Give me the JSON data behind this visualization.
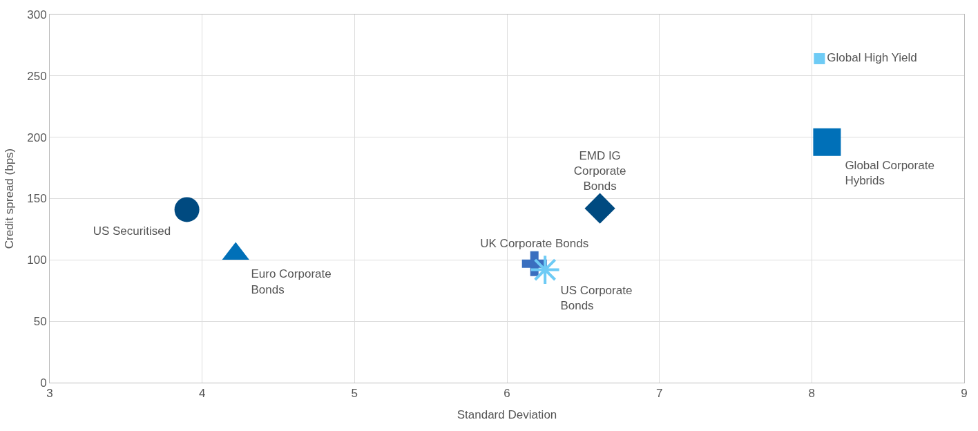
{
  "chart_data": {
    "type": "scatter",
    "xlabel": "Standard Deviation",
    "ylabel": "Credit spread (bps)",
    "xlim": [
      3,
      9
    ],
    "xticks": [
      3,
      4,
      5,
      6,
      7,
      8,
      9
    ],
    "ylim": [
      0,
      300
    ],
    "yticks": [
      0,
      50,
      100,
      150,
      200,
      250,
      300
    ],
    "grid": true,
    "legend": false,
    "series": [
      {
        "name": "US Securitised",
        "color": "#004a80",
        "marker": "circle",
        "x": [
          3.9
        ],
        "values": [
          141
        ]
      },
      {
        "name": "Euro Corporate Bonds",
        "color": "#0070b8",
        "marker": "triangle",
        "x": [
          4.22
        ],
        "values": [
          105
        ]
      },
      {
        "name": "EMD IG Corporate Bonds",
        "color": "#004a80",
        "marker": "diamond",
        "x": [
          6.61
        ],
        "values": [
          142
        ]
      },
      {
        "name": "UK Corporate Bonds",
        "color": "#3a6fbf",
        "marker": "cross",
        "x": [
          6.18
        ],
        "values": [
          97
        ]
      },
      {
        "name": "US Corporate Bonds",
        "color": "#6ecbf5",
        "marker": "cross",
        "x": [
          6.25
        ],
        "values": [
          92
        ]
      },
      {
        "name": "Global Corporate Hybrids",
        "color": "#0070b8",
        "marker": "square",
        "x": [
          8.1
        ],
        "values": [
          196
        ]
      },
      {
        "name": "Global High Yield",
        "color": "#6ecbf5",
        "marker": "square",
        "x": [
          8.05
        ],
        "values": [
          264
        ]
      }
    ]
  }
}
